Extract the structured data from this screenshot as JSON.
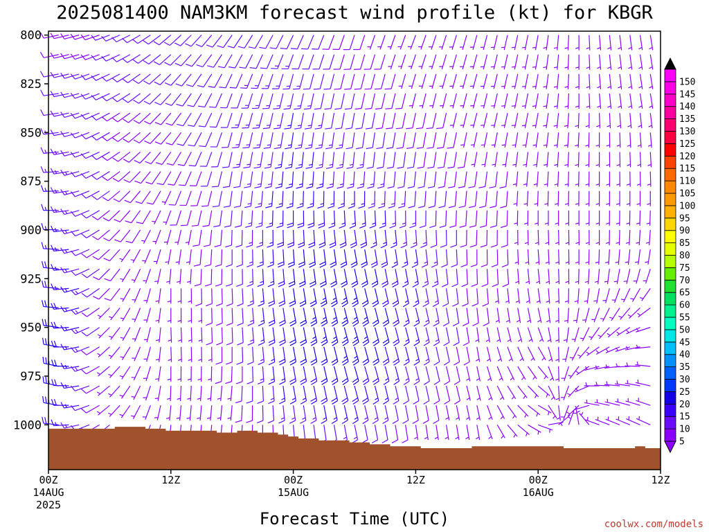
{
  "title": "2025081400 NAM3KM forecast wind profile (kt) for KBGR",
  "credit": "coolwx.com/models",
  "chart_data": {
    "type": "wind-barb-time-height",
    "title": "2025081400 NAM3KM forecast wind profile (kt) for KBGR",
    "xlabel": "Forecast Time (UTC)",
    "ylabel": "",
    "x_range_hours": [
      0,
      60
    ],
    "y_range_hpa": [
      1023,
      798
    ],
    "y_ticks": [
      {
        "value": 800,
        "label": "800"
      },
      {
        "value": 825,
        "label": "825"
      },
      {
        "value": 850,
        "label": "850"
      },
      {
        "value": 875,
        "label": "875"
      },
      {
        "value": 900,
        "label": "900"
      },
      {
        "value": 925,
        "label": "925"
      },
      {
        "value": 950,
        "label": "950"
      },
      {
        "value": 975,
        "label": "975"
      },
      {
        "value": 1000,
        "label": "1000"
      }
    ],
    "x_ticks": [
      {
        "hour": 0,
        "lines": [
          "00Z",
          "14AUG",
          "2025"
        ]
      },
      {
        "hour": 12,
        "lines": [
          "12Z"
        ]
      },
      {
        "hour": 24,
        "lines": [
          "00Z",
          "15AUG"
        ]
      },
      {
        "hour": 36,
        "lines": [
          "12Z"
        ]
      },
      {
        "hour": 48,
        "lines": [
          "00Z",
          "16AUG"
        ]
      },
      {
        "hour": 60,
        "lines": [
          "12Z"
        ]
      }
    ],
    "times_hours": [
      0,
      1,
      2,
      3,
      4,
      5,
      6,
      7,
      8,
      9,
      10,
      11,
      12,
      13,
      14,
      15,
      16,
      17,
      18,
      19,
      20,
      21,
      22,
      23,
      24,
      25,
      26,
      27,
      28,
      29,
      30,
      31,
      32,
      33,
      34,
      35,
      36,
      37,
      38,
      39,
      40,
      41,
      42,
      43,
      44,
      45,
      46,
      47,
      48,
      49,
      50,
      51,
      52,
      53,
      54,
      55,
      56,
      57,
      58,
      59,
      60
    ],
    "levels_hpa": [
      800,
      810,
      820,
      830,
      840,
      850,
      860,
      870,
      880,
      890,
      900,
      910,
      920,
      930,
      940,
      950,
      960,
      970,
      980,
      990,
      1000
    ],
    "surface_pressure_hpa": [
      1002,
      1002,
      1002,
      1002,
      1002,
      1002,
      1002,
      1001,
      1001,
      1001,
      1002,
      1002,
      1003,
      1003,
      1003,
      1003,
      1003,
      1004,
      1004,
      1003,
      1003,
      1004,
      1004,
      1005,
      1006,
      1007,
      1007,
      1008,
      1008,
      1008,
      1009,
      1009,
      1010,
      1010,
      1011,
      1011,
      1011,
      1012,
      1012,
      1012,
      1012,
      1012,
      1011,
      1011,
      1011,
      1011,
      1011,
      1011,
      1011,
      1011,
      1011,
      1012,
      1012,
      1012,
      1012,
      1012,
      1012,
      1012,
      1011,
      1012,
      1012
    ],
    "wind_keyframes": [
      {
        "hour": 0,
        "dir": [
          260,
          260,
          262,
          265,
          265,
          268,
          270,
          272,
          275,
          278,
          280,
          282,
          285,
          285,
          285,
          288,
          290,
          292,
          292,
          290,
          285
        ],
        "spd": [
          8,
          9,
          10,
          11,
          12,
          13,
          14,
          15,
          16,
          17,
          18,
          19,
          21,
          22,
          24,
          25,
          26,
          27,
          27,
          26,
          22
        ]
      },
      {
        "hour": 6,
        "dir": [
          250,
          248,
          245,
          245,
          242,
          240,
          240,
          238,
          235,
          232,
          230,
          228,
          225,
          225,
          225,
          225,
          228,
          230,
          230,
          230,
          230
        ],
        "spd": [
          10,
          10,
          10,
          10,
          10,
          10,
          10,
          10,
          10,
          9,
          9,
          8,
          8,
          8,
          7,
          7,
          6,
          6,
          5,
          5,
          5
        ]
      },
      {
        "hour": 12,
        "dir": [
          230,
          228,
          225,
          222,
          220,
          220,
          215,
          210,
          205,
          200,
          195,
          190,
          185,
          180,
          180,
          178,
          178,
          180,
          182,
          185,
          185
        ],
        "spd": [
          10,
          10,
          10,
          10,
          9,
          9,
          8,
          8,
          7,
          7,
          6,
          6,
          6,
          6,
          5,
          5,
          5,
          5,
          5,
          5,
          5
        ]
      },
      {
        "hour": 18,
        "dir": [
          215,
          210,
          205,
          200,
          198,
          195,
          192,
          190,
          188,
          185,
          182,
          180,
          180,
          178,
          178,
          178,
          180,
          182,
          185,
          185,
          185
        ],
        "spd": [
          11,
          11,
          12,
          12,
          12,
          12,
          12,
          11,
          11,
          11,
          10,
          10,
          10,
          9,
          9,
          9,
          8,
          8,
          7,
          7,
          6
        ]
      },
      {
        "hour": 24,
        "dir": [
          205,
          200,
          195,
          192,
          190,
          188,
          186,
          184,
          182,
          180,
          178,
          176,
          174,
          172,
          170,
          170,
          170,
          170,
          170,
          172,
          175
        ],
        "spd": [
          12,
          13,
          14,
          14,
          15,
          15,
          16,
          16,
          17,
          18,
          19,
          20,
          21,
          22,
          22,
          22,
          21,
          19,
          17,
          14,
          11
        ]
      },
      {
        "hour": 30,
        "dir": [
          198,
          196,
          194,
          192,
          190,
          188,
          186,
          184,
          180,
          176,
          172,
          170,
          168,
          166,
          165,
          164,
          164,
          164,
          165,
          166,
          168
        ],
        "spd": [
          8,
          9,
          9,
          10,
          11,
          12,
          13,
          14,
          16,
          17,
          19,
          21,
          22,
          23,
          24,
          24,
          23,
          21,
          19,
          16,
          13
        ]
      },
      {
        "hour": 36,
        "dir": [
          200,
          198,
          196,
          194,
          192,
          190,
          188,
          186,
          184,
          180,
          176,
          172,
          170,
          168,
          166,
          166,
          166,
          166,
          168,
          170,
          172
        ],
        "spd": [
          6,
          6,
          7,
          7,
          8,
          9,
          10,
          11,
          12,
          13,
          14,
          15,
          16,
          16,
          16,
          16,
          15,
          13,
          11,
          9,
          7
        ]
      },
      {
        "hour": 42,
        "dir": [
          195,
          195,
          195,
          194,
          194,
          192,
          190,
          188,
          186,
          184,
          182,
          180,
          178,
          176,
          174,
          172,
          170,
          168,
          166,
          168,
          170
        ],
        "spd": [
          6,
          6,
          6,
          6,
          7,
          7,
          7,
          8,
          8,
          8,
          8,
          8,
          8,
          8,
          8,
          7,
          7,
          6,
          6,
          5,
          5
        ]
      },
      {
        "hour": 48,
        "dir": [
          190,
          190,
          190,
          190,
          190,
          188,
          186,
          184,
          182,
          180,
          178,
          176,
          174,
          172,
          168,
          160,
          150,
          140,
          130,
          120,
          110
        ],
        "spd": [
          6,
          6,
          6,
          6,
          6,
          6,
          7,
          7,
          7,
          7,
          7,
          7,
          7,
          6,
          6,
          6,
          6,
          5,
          5,
          5,
          5
        ]
      },
      {
        "hour": 54,
        "dir": [
          175,
          175,
          175,
          175,
          178,
          180,
          180,
          180,
          180,
          180,
          180,
          182,
          185,
          190,
          200,
          215,
          235,
          255,
          270,
          280,
          290
        ],
        "spd": [
          6,
          6,
          6,
          6,
          6,
          6,
          6,
          6,
          6,
          6,
          6,
          6,
          6,
          6,
          6,
          5,
          5,
          5,
          5,
          5,
          5
        ]
      },
      {
        "hour": 60,
        "dir": [
          170,
          170,
          170,
          170,
          172,
          174,
          176,
          178,
          180,
          182,
          185,
          190,
          200,
          220,
          240,
          260,
          270,
          280,
          285,
          290,
          295
        ],
        "spd": [
          6,
          6,
          6,
          6,
          6,
          6,
          6,
          6,
          6,
          6,
          6,
          6,
          6,
          6,
          6,
          6,
          6,
          5,
          5,
          5,
          5
        ]
      }
    ],
    "colorbar": {
      "labels": [
        "5",
        "10",
        "15",
        "20",
        "25",
        "30",
        "35",
        "40",
        "45",
        "50",
        "55",
        "60",
        "65",
        "70",
        "75",
        "80",
        "85",
        "90",
        "95",
        "100",
        "105",
        "110",
        "115",
        "120",
        "125",
        "130",
        "135",
        "140",
        "145",
        "150"
      ],
      "colors": [
        "#8b00ff",
        "#6a0dff",
        "#3a00ff",
        "#1400e6",
        "#0038ff",
        "#0060ff",
        "#0090ff",
        "#00bfff",
        "#00e5e5",
        "#00ffc0",
        "#00f090",
        "#00e060",
        "#20e030",
        "#66ee00",
        "#b4ff00",
        "#e6ff00",
        "#ffff00",
        "#ffd700",
        "#ffb000",
        "#ff9900",
        "#ff8800",
        "#ff6a00",
        "#ff4400",
        "#ff0000",
        "#ff0040",
        "#ff0070",
        "#ff00a0",
        "#ff00c8",
        "#ff00e6",
        "#ff00ff"
      ],
      "top_color": "#000000",
      "bottom_color": "#8b00ff"
    },
    "terrain_color": "#a0522d"
  }
}
